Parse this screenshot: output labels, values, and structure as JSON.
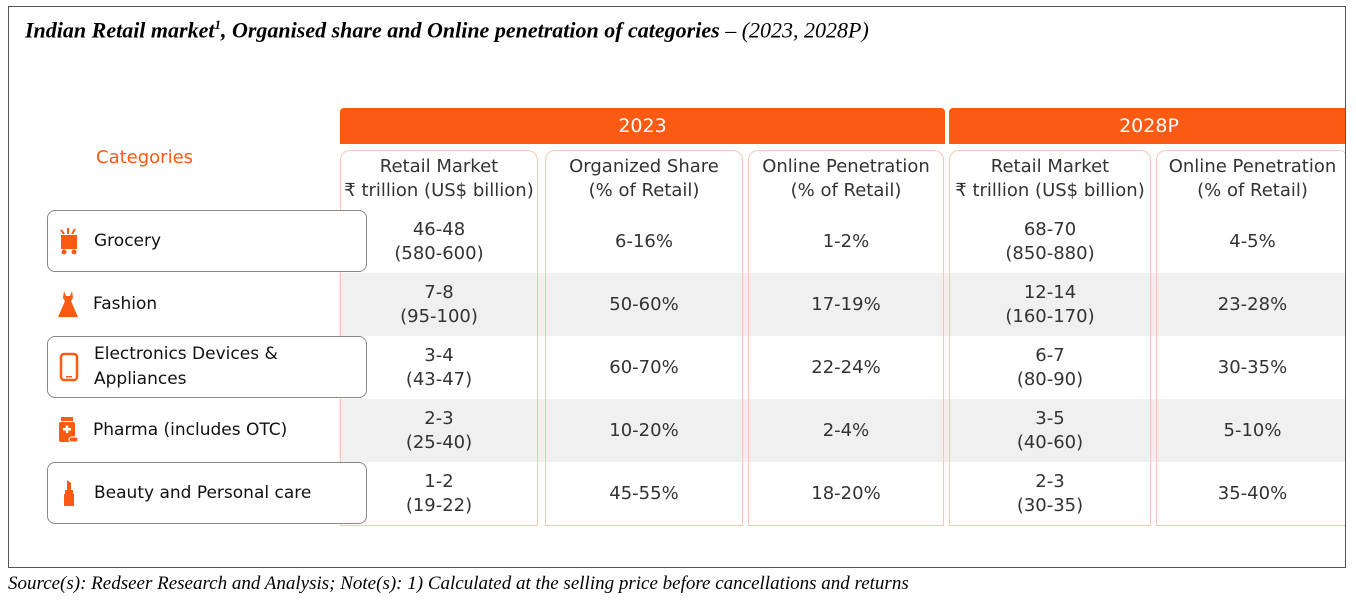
{
  "title": {
    "main": "Indian Retail market",
    "sup": "1",
    "rest": ", Organised share and Online penetration of categories",
    "tail": " – (2023, 2028P)"
  },
  "source": "Source(s): Redseer Research and Analysis; Note(s): 1) Calculated at the selling price before cancellations and returns",
  "years": [
    "2023",
    "2028P"
  ],
  "categories_header": "Categories",
  "column_headers": [
    {
      "line1": "Retail Market",
      "line2": "₹ trillion (US$ billion)"
    },
    {
      "line1": "Organized Share",
      "line2": "(% of Retail)"
    },
    {
      "line1": "Online Penetration",
      "line2": "(% of Retail)"
    },
    {
      "line1": "Retail Market",
      "line2": "₹ trillion (US$ billion)"
    },
    {
      "line1": "Online Penetration",
      "line2": "(% of Retail)"
    }
  ],
  "rows": [
    {
      "category": [
        "Grocery"
      ],
      "icon": "grocery-basket-icon",
      "cells": [
        [
          "46-48",
          "(580-600)"
        ],
        [
          "6-16%"
        ],
        [
          "1-2%"
        ],
        [
          "68-70",
          "(850-880)"
        ],
        [
          "4-5%"
        ]
      ]
    },
    {
      "category": [
        "Fashion"
      ],
      "icon": "dress-icon",
      "cells": [
        [
          "7-8",
          "(95-100)"
        ],
        [
          "50-60%"
        ],
        [
          "17-19%"
        ],
        [
          "12-14",
          "(160-170)"
        ],
        [
          "23-28%"
        ]
      ]
    },
    {
      "category": [
        "Electronics Devices &",
        "Appliances"
      ],
      "icon": "smartphone-icon",
      "cells": [
        [
          "3-4",
          "(43-47)"
        ],
        [
          "60-70%"
        ],
        [
          "22-24%"
        ],
        [
          "6-7",
          "(80-90)"
        ],
        [
          "30-35%"
        ]
      ]
    },
    {
      "category": [
        "Pharma (includes OTC)"
      ],
      "icon": "medicine-bottle-icon",
      "cells": [
        [
          "2-3",
          "(25-40)"
        ],
        [
          "10-20%"
        ],
        [
          "2-4%"
        ],
        [
          "3-5",
          "(40-60)"
        ],
        [
          "5-10%"
        ]
      ]
    },
    {
      "category": [
        "Beauty and Personal care"
      ],
      "icon": "lipstick-icon",
      "cells": [
        [
          "1-2",
          "(19-22)"
        ],
        [
          "45-55%"
        ],
        [
          "18-20%"
        ],
        [
          "2-3",
          "(30-35)"
        ],
        [
          "35-40%"
        ]
      ]
    }
  ],
  "colors": {
    "accent": "#fb5a12",
    "stripe": "#f0f0f0",
    "border": "#f5c8b0"
  }
}
